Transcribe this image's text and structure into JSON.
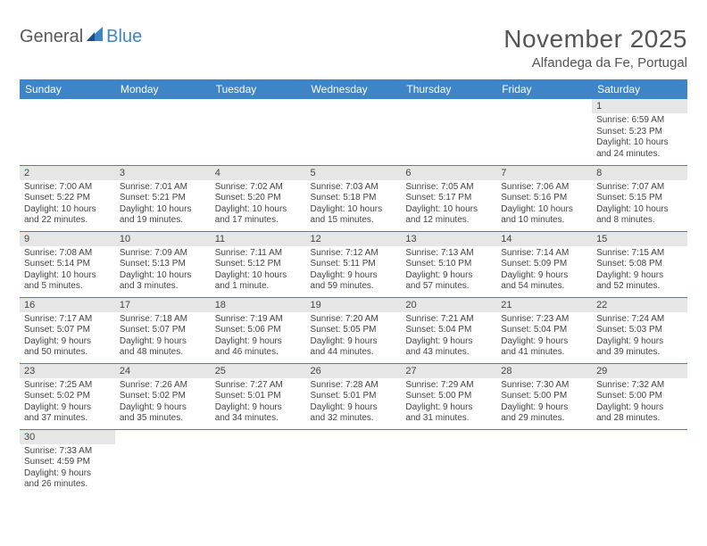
{
  "logo": {
    "text1": "General",
    "text2": "Blue",
    "accent_color": "#3d85c6"
  },
  "title": "November 2025",
  "location": "Alfandega da Fe, Portugal",
  "colors": {
    "header_bg": "#3d85c6",
    "header_fg": "#ffffff",
    "daynum_bg": "#e6e6e6",
    "border": "#3d85c6"
  },
  "day_headers": [
    "Sunday",
    "Monday",
    "Tuesday",
    "Wednesday",
    "Thursday",
    "Friday",
    "Saturday"
  ],
  "weeks": [
    [
      null,
      null,
      null,
      null,
      null,
      null,
      {
        "n": "1",
        "sr": "Sunrise: 6:59 AM",
        "ss": "Sunset: 5:23 PM",
        "d1": "Daylight: 10 hours",
        "d2": "and 24 minutes."
      }
    ],
    [
      {
        "n": "2",
        "sr": "Sunrise: 7:00 AM",
        "ss": "Sunset: 5:22 PM",
        "d1": "Daylight: 10 hours",
        "d2": "and 22 minutes."
      },
      {
        "n": "3",
        "sr": "Sunrise: 7:01 AM",
        "ss": "Sunset: 5:21 PM",
        "d1": "Daylight: 10 hours",
        "d2": "and 19 minutes."
      },
      {
        "n": "4",
        "sr": "Sunrise: 7:02 AM",
        "ss": "Sunset: 5:20 PM",
        "d1": "Daylight: 10 hours",
        "d2": "and 17 minutes."
      },
      {
        "n": "5",
        "sr": "Sunrise: 7:03 AM",
        "ss": "Sunset: 5:18 PM",
        "d1": "Daylight: 10 hours",
        "d2": "and 15 minutes."
      },
      {
        "n": "6",
        "sr": "Sunrise: 7:05 AM",
        "ss": "Sunset: 5:17 PM",
        "d1": "Daylight: 10 hours",
        "d2": "and 12 minutes."
      },
      {
        "n": "7",
        "sr": "Sunrise: 7:06 AM",
        "ss": "Sunset: 5:16 PM",
        "d1": "Daylight: 10 hours",
        "d2": "and 10 minutes."
      },
      {
        "n": "8",
        "sr": "Sunrise: 7:07 AM",
        "ss": "Sunset: 5:15 PM",
        "d1": "Daylight: 10 hours",
        "d2": "and 8 minutes."
      }
    ],
    [
      {
        "n": "9",
        "sr": "Sunrise: 7:08 AM",
        "ss": "Sunset: 5:14 PM",
        "d1": "Daylight: 10 hours",
        "d2": "and 5 minutes."
      },
      {
        "n": "10",
        "sr": "Sunrise: 7:09 AM",
        "ss": "Sunset: 5:13 PM",
        "d1": "Daylight: 10 hours",
        "d2": "and 3 minutes."
      },
      {
        "n": "11",
        "sr": "Sunrise: 7:11 AM",
        "ss": "Sunset: 5:12 PM",
        "d1": "Daylight: 10 hours",
        "d2": "and 1 minute."
      },
      {
        "n": "12",
        "sr": "Sunrise: 7:12 AM",
        "ss": "Sunset: 5:11 PM",
        "d1": "Daylight: 9 hours",
        "d2": "and 59 minutes."
      },
      {
        "n": "13",
        "sr": "Sunrise: 7:13 AM",
        "ss": "Sunset: 5:10 PM",
        "d1": "Daylight: 9 hours",
        "d2": "and 57 minutes."
      },
      {
        "n": "14",
        "sr": "Sunrise: 7:14 AM",
        "ss": "Sunset: 5:09 PM",
        "d1": "Daylight: 9 hours",
        "d2": "and 54 minutes."
      },
      {
        "n": "15",
        "sr": "Sunrise: 7:15 AM",
        "ss": "Sunset: 5:08 PM",
        "d1": "Daylight: 9 hours",
        "d2": "and 52 minutes."
      }
    ],
    [
      {
        "n": "16",
        "sr": "Sunrise: 7:17 AM",
        "ss": "Sunset: 5:07 PM",
        "d1": "Daylight: 9 hours",
        "d2": "and 50 minutes."
      },
      {
        "n": "17",
        "sr": "Sunrise: 7:18 AM",
        "ss": "Sunset: 5:07 PM",
        "d1": "Daylight: 9 hours",
        "d2": "and 48 minutes."
      },
      {
        "n": "18",
        "sr": "Sunrise: 7:19 AM",
        "ss": "Sunset: 5:06 PM",
        "d1": "Daylight: 9 hours",
        "d2": "and 46 minutes."
      },
      {
        "n": "19",
        "sr": "Sunrise: 7:20 AM",
        "ss": "Sunset: 5:05 PM",
        "d1": "Daylight: 9 hours",
        "d2": "and 44 minutes."
      },
      {
        "n": "20",
        "sr": "Sunrise: 7:21 AM",
        "ss": "Sunset: 5:04 PM",
        "d1": "Daylight: 9 hours",
        "d2": "and 43 minutes."
      },
      {
        "n": "21",
        "sr": "Sunrise: 7:23 AM",
        "ss": "Sunset: 5:04 PM",
        "d1": "Daylight: 9 hours",
        "d2": "and 41 minutes."
      },
      {
        "n": "22",
        "sr": "Sunrise: 7:24 AM",
        "ss": "Sunset: 5:03 PM",
        "d1": "Daylight: 9 hours",
        "d2": "and 39 minutes."
      }
    ],
    [
      {
        "n": "23",
        "sr": "Sunrise: 7:25 AM",
        "ss": "Sunset: 5:02 PM",
        "d1": "Daylight: 9 hours",
        "d2": "and 37 minutes."
      },
      {
        "n": "24",
        "sr": "Sunrise: 7:26 AM",
        "ss": "Sunset: 5:02 PM",
        "d1": "Daylight: 9 hours",
        "d2": "and 35 minutes."
      },
      {
        "n": "25",
        "sr": "Sunrise: 7:27 AM",
        "ss": "Sunset: 5:01 PM",
        "d1": "Daylight: 9 hours",
        "d2": "and 34 minutes."
      },
      {
        "n": "26",
        "sr": "Sunrise: 7:28 AM",
        "ss": "Sunset: 5:01 PM",
        "d1": "Daylight: 9 hours",
        "d2": "and 32 minutes."
      },
      {
        "n": "27",
        "sr": "Sunrise: 7:29 AM",
        "ss": "Sunset: 5:00 PM",
        "d1": "Daylight: 9 hours",
        "d2": "and 31 minutes."
      },
      {
        "n": "28",
        "sr": "Sunrise: 7:30 AM",
        "ss": "Sunset: 5:00 PM",
        "d1": "Daylight: 9 hours",
        "d2": "and 29 minutes."
      },
      {
        "n": "29",
        "sr": "Sunrise: 7:32 AM",
        "ss": "Sunset: 5:00 PM",
        "d1": "Daylight: 9 hours",
        "d2": "and 28 minutes."
      }
    ],
    [
      {
        "n": "30",
        "sr": "Sunrise: 7:33 AM",
        "ss": "Sunset: 4:59 PM",
        "d1": "Daylight: 9 hours",
        "d2": "and 26 minutes."
      },
      null,
      null,
      null,
      null,
      null,
      null
    ]
  ]
}
